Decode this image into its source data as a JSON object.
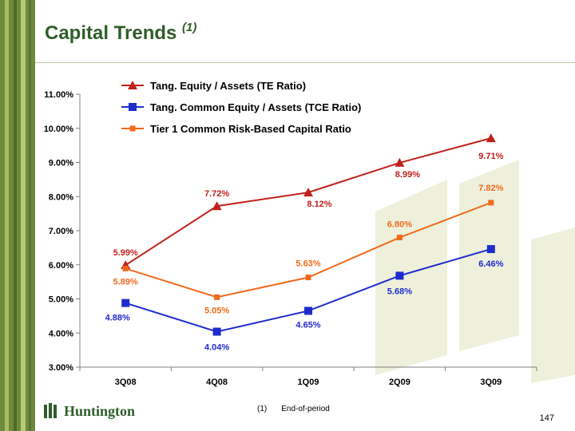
{
  "slide": {
    "title": "Capital Trends",
    "title_sup": "(1)",
    "footnote_marker": "(1)",
    "footnote_text": "End-of-period",
    "page_number": "147",
    "logo_text": "Huntington"
  },
  "chart_data": {
    "type": "line",
    "categories": [
      "3Q08",
      "4Q08",
      "1Q09",
      "2Q09",
      "3Q09"
    ],
    "y_ticks": [
      "3.00%",
      "4.00%",
      "5.00%",
      "6.00%",
      "7.00%",
      "8.00%",
      "9.00%",
      "10.00%",
      "11.00%"
    ],
    "ylim": [
      3.0,
      11.0
    ],
    "grid": false,
    "legend_position": "top-left",
    "series": [
      {
        "name": "Tang. Equity / Assets (TE Ratio)",
        "color": "#c0201a",
        "marker": "triangle",
        "values": [
          5.99,
          7.72,
          8.12,
          8.99,
          9.71
        ],
        "labels": [
          "5.99%",
          "7.72%",
          "8.12%",
          "8.99%",
          "9.71%"
        ]
      },
      {
        "name": "Tang. Common Equity / Assets (TCE Ratio)",
        "color": "#1f2ccc",
        "marker": "square",
        "values": [
          4.88,
          4.04,
          4.65,
          5.68,
          6.46
        ],
        "labels": [
          "4.88%",
          "4.04%",
          "4.65%",
          "5.68%",
          "6.46%"
        ]
      },
      {
        "name": "Tier 1 Common Risk-Based Capital Ratio",
        "color": "#f06a1a",
        "marker": "small-square",
        "values": [
          5.89,
          5.05,
          5.63,
          6.8,
          7.82
        ],
        "labels": [
          "5.89%",
          "5.05%",
          "5.63%",
          "6.80%",
          "7.82%"
        ]
      }
    ]
  }
}
